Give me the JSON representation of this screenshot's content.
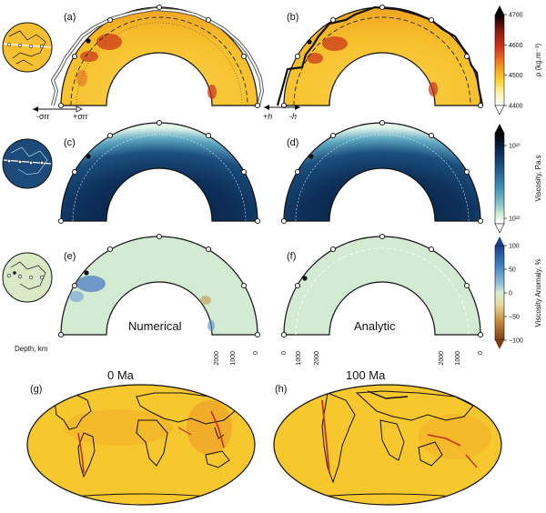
{
  "panels": {
    "a": "(a)",
    "b": "(b)",
    "c": "(c)",
    "d": "(d)",
    "e": "(e)",
    "f": "(f)",
    "g": "(g)",
    "h": "(h)"
  },
  "arrows": {
    "minus_sigma": "-σrr",
    "plus_sigma": "+σrr",
    "plus_h": "+h",
    "minus_h": "-h"
  },
  "depth_axis": {
    "label": "Depth, km",
    "ticks": [
      "2000",
      "1000",
      "0"
    ]
  },
  "captions": {
    "numerical": "Numerical",
    "analytic": "Analytic",
    "time_left": "0 Ma",
    "time_right": "100 Ma"
  },
  "colorbars": {
    "density": {
      "label": "ρ (kg.m⁻³)",
      "ticks": [
        "4700",
        "4600",
        "4500",
        "4400"
      ],
      "colors": [
        "#000000",
        "#8a1a0f",
        "#d83a1c",
        "#f48a1c",
        "#fcd22c",
        "#fff3a8",
        "#ffffff"
      ]
    },
    "viscosity": {
      "label": "Viscosity, Pa.s",
      "ticks": [
        "10²³",
        "10²²"
      ],
      "colors": [
        "#000000",
        "#0a2b55",
        "#1f5a8c",
        "#3d8fb6",
        "#85c3c8",
        "#d4eed9",
        "#ffffff"
      ]
    },
    "anomaly": {
      "label": "Viscosity Anomaly, %",
      "ticks": [
        "100",
        "50",
        "0",
        "−50",
        "−100"
      ],
      "colors": [
        "#1e3f8e",
        "#3d7cc0",
        "#8fbfd9",
        "#d7ecd2",
        "#e9dc9c",
        "#c58c3d",
        "#7a3e12"
      ]
    }
  },
  "palette": {
    "density_bg": "#f7c72e",
    "viscosity_bg": "#0d2f58",
    "anomaly_bg": "#d3ead3",
    "globe_density": "#f6c030",
    "globe_visc": "#1c4a7a",
    "globe_anom": "#d9e9c6"
  },
  "icons": [
    "globe-icon",
    "arrow-icon"
  ]
}
